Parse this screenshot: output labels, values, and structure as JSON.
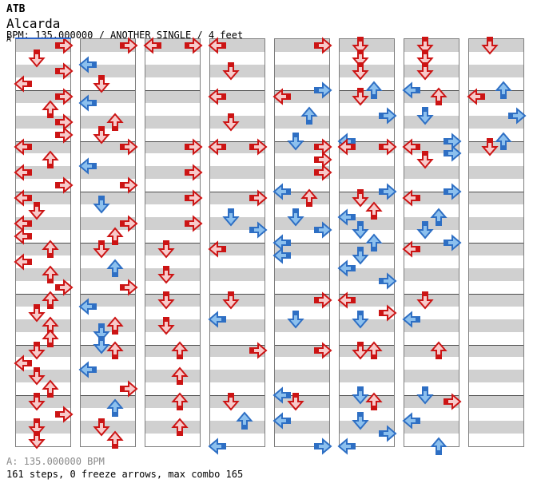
{
  "header": {
    "app_name": "ATB",
    "title": "Alcarda",
    "subtitle": "BPM: 135.000000 / ANOTHER SINGLE / 4 feet"
  },
  "footer": {
    "bpm_line": "A: 135.000000 BPM",
    "stats_line": "161 steps, 0 freeze arrows, max combo 165"
  },
  "chart": {
    "marker_label": "A",
    "bpm": "135.000000",
    "difficulty": "ANOTHER SINGLE",
    "feet": "4 feet",
    "steps": 161,
    "freeze_arrows": 0,
    "max_combo": 165,
    "columns": 8,
    "measures_per_column": 8,
    "beats_per_measure": 4,
    "note_format": "[measure 0-7, beat 0-3.5 (x.5 = eighth note), lane L/D/U/R, color r=quarter b=eighth]",
    "colors": {
      "red_border": "#cc1414",
      "red_fill": "#f7caca",
      "blue_border": "#2e6fc4",
      "blue_fill": "#8cc0ee",
      "band_gray": "#d0d0d0",
      "band_white": "#ffffff",
      "separator": "#4d4d4d",
      "column_border": "#7d7d7d",
      "start_marker": "#2d64c8"
    },
    "notes": [
      [
        [
          0,
          0,
          "R",
          "r"
        ],
        [
          0,
          1,
          "D",
          "r"
        ],
        [
          0,
          2,
          "R",
          "r"
        ],
        [
          0,
          3,
          "L",
          "r"
        ],
        [
          1,
          0,
          "R",
          "r"
        ],
        [
          1,
          1,
          "U",
          "r"
        ],
        [
          1,
          2,
          "R",
          "r"
        ],
        [
          1,
          3,
          "R",
          "r"
        ],
        [
          2,
          0,
          "L",
          "r"
        ],
        [
          2,
          1,
          "U",
          "r"
        ],
        [
          2,
          2,
          "L",
          "r"
        ],
        [
          2,
          3,
          "R",
          "r"
        ],
        [
          3,
          0,
          "L",
          "r"
        ],
        [
          3,
          1,
          "D",
          "r"
        ],
        [
          3,
          2,
          "L",
          "r"
        ],
        [
          3,
          3,
          "L",
          "r"
        ],
        [
          4,
          0,
          "U",
          "r"
        ],
        [
          4,
          1,
          "L",
          "r"
        ],
        [
          4,
          2,
          "U",
          "r"
        ],
        [
          4,
          3,
          "R",
          "r"
        ],
        [
          5,
          0,
          "U",
          "r"
        ],
        [
          5,
          1,
          "D",
          "r"
        ],
        [
          5,
          2,
          "U",
          "r"
        ],
        [
          5,
          3,
          "U",
          "r"
        ],
        [
          6,
          0,
          "D",
          "r"
        ],
        [
          6,
          1,
          "L",
          "r"
        ],
        [
          6,
          2,
          "D",
          "r"
        ],
        [
          6,
          3,
          "U",
          "r"
        ],
        [
          7,
          0,
          "D",
          "r"
        ],
        [
          7,
          1,
          "R",
          "r"
        ],
        [
          7,
          2,
          "D",
          "r"
        ],
        [
          7,
          3,
          "D",
          "r"
        ]
      ],
      [
        [
          0,
          0,
          "R",
          "r"
        ],
        [
          0,
          1.5,
          "L",
          "b"
        ],
        [
          0,
          3,
          "D",
          "r"
        ],
        [
          1,
          0.5,
          "L",
          "b"
        ],
        [
          1,
          2,
          "U",
          "r"
        ],
        [
          1,
          3,
          "D",
          "r"
        ],
        [
          2,
          0,
          "R",
          "r"
        ],
        [
          2,
          1.5,
          "L",
          "b"
        ],
        [
          2,
          3,
          "R",
          "r"
        ],
        [
          3,
          0.5,
          "D",
          "b"
        ],
        [
          3,
          2,
          "R",
          "r"
        ],
        [
          3,
          3,
          "U",
          "r"
        ],
        [
          4,
          0,
          "D",
          "r"
        ],
        [
          4,
          1.5,
          "U",
          "b"
        ],
        [
          4,
          3,
          "R",
          "r"
        ],
        [
          5,
          0.5,
          "L",
          "b"
        ],
        [
          5,
          2,
          "U",
          "r"
        ],
        [
          5,
          2.5,
          "D",
          "b"
        ],
        [
          5,
          3.5,
          "D",
          "b"
        ],
        [
          6,
          0,
          "U",
          "r"
        ],
        [
          6,
          1.5,
          "L",
          "b"
        ],
        [
          6,
          3,
          "R",
          "r"
        ],
        [
          7,
          0.5,
          "U",
          "b"
        ],
        [
          7,
          2,
          "D",
          "r"
        ],
        [
          7,
          3,
          "U",
          "r"
        ]
      ],
      [
        [
          0,
          0,
          "L",
          "r"
        ],
        [
          0,
          0,
          "R",
          "r"
        ],
        [
          2,
          0,
          "R",
          "r"
        ],
        [
          2,
          2,
          "R",
          "r"
        ],
        [
          3,
          0,
          "R",
          "r"
        ],
        [
          3,
          2,
          "R",
          "r"
        ],
        [
          4,
          0,
          "D",
          "r"
        ],
        [
          4,
          2,
          "D",
          "r"
        ],
        [
          5,
          0,
          "D",
          "r"
        ],
        [
          5,
          2,
          "D",
          "r"
        ],
        [
          6,
          0,
          "U",
          "r"
        ],
        [
          6,
          2,
          "U",
          "r"
        ],
        [
          7,
          0,
          "U",
          "r"
        ],
        [
          7,
          2,
          "U",
          "r"
        ]
      ],
      [
        [
          0,
          0,
          "L",
          "r"
        ],
        [
          0,
          2,
          "D",
          "r"
        ],
        [
          1,
          0,
          "L",
          "r"
        ],
        [
          1,
          2,
          "D",
          "r"
        ],
        [
          2,
          0,
          "L",
          "r"
        ],
        [
          2,
          0,
          "R",
          "r"
        ],
        [
          3,
          0,
          "R",
          "r"
        ],
        [
          3,
          1.5,
          "D",
          "b"
        ],
        [
          3,
          2.5,
          "R",
          "b"
        ],
        [
          4,
          0,
          "L",
          "r"
        ],
        [
          5,
          0,
          "D",
          "r"
        ],
        [
          5,
          1.5,
          "L",
          "b"
        ],
        [
          6,
          0,
          "R",
          "r"
        ],
        [
          7,
          0,
          "D",
          "r"
        ],
        [
          7,
          1.5,
          "U",
          "b"
        ],
        [
          7,
          3.5,
          "L",
          "b"
        ]
      ],
      [
        [
          0,
          0,
          "R",
          "r"
        ],
        [
          0,
          3.5,
          "R",
          "b"
        ],
        [
          1,
          0,
          "L",
          "r"
        ],
        [
          1,
          1.5,
          "U",
          "b"
        ],
        [
          1,
          3.5,
          "D",
          "b"
        ],
        [
          2,
          0,
          "R",
          "r"
        ],
        [
          2,
          1,
          "R",
          "r"
        ],
        [
          2,
          2,
          "R",
          "r"
        ],
        [
          2,
          3.5,
          "L",
          "b"
        ],
        [
          3,
          0,
          "U",
          "r"
        ],
        [
          3,
          1.5,
          "D",
          "b"
        ],
        [
          3,
          2.5,
          "R",
          "b"
        ],
        [
          3,
          3.5,
          "L",
          "b"
        ],
        [
          4,
          0.5,
          "L",
          "b"
        ],
        [
          5,
          0,
          "R",
          "r"
        ],
        [
          5,
          1.5,
          "D",
          "b"
        ],
        [
          6,
          0,
          "R",
          "r"
        ],
        [
          6,
          3.5,
          "L",
          "b"
        ],
        [
          7,
          0,
          "D",
          "r"
        ],
        [
          7,
          1.5,
          "L",
          "b"
        ],
        [
          7,
          3.5,
          "R",
          "b"
        ]
      ],
      [
        [
          0,
          0,
          "D",
          "r"
        ],
        [
          0,
          1,
          "D",
          "r"
        ],
        [
          0,
          2,
          "D",
          "r"
        ],
        [
          0,
          3.5,
          "U",
          "b"
        ],
        [
          1,
          0,
          "D",
          "r"
        ],
        [
          1,
          1.5,
          "R",
          "b"
        ],
        [
          1,
          3.5,
          "L",
          "b"
        ],
        [
          2,
          0,
          "L",
          "r"
        ],
        [
          2,
          0,
          "R",
          "r"
        ],
        [
          2,
          3.5,
          "R",
          "b"
        ],
        [
          3,
          0,
          "D",
          "r"
        ],
        [
          3,
          1,
          "U",
          "r"
        ],
        [
          3,
          1.5,
          "L",
          "b"
        ],
        [
          3,
          2.5,
          "D",
          "b"
        ],
        [
          3,
          3.5,
          "U",
          "b"
        ],
        [
          4,
          0.5,
          "D",
          "b"
        ],
        [
          4,
          1.5,
          "L",
          "b"
        ],
        [
          4,
          2.5,
          "R",
          "b"
        ],
        [
          5,
          0,
          "L",
          "r"
        ],
        [
          5,
          1,
          "R",
          "r"
        ],
        [
          5,
          1.5,
          "D",
          "b"
        ],
        [
          6,
          0,
          "D",
          "r"
        ],
        [
          6,
          0,
          "U",
          "r"
        ],
        [
          6,
          3.5,
          "D",
          "b"
        ],
        [
          7,
          0,
          "U",
          "r"
        ],
        [
          7,
          1.5,
          "D",
          "b"
        ],
        [
          7,
          2.5,
          "R",
          "b"
        ],
        [
          7,
          3.5,
          "L",
          "b"
        ]
      ],
      [
        [
          0,
          0,
          "D",
          "r"
        ],
        [
          0,
          1,
          "D",
          "r"
        ],
        [
          0,
          2,
          "D",
          "r"
        ],
        [
          0,
          3.5,
          "L",
          "b"
        ],
        [
          1,
          0,
          "U",
          "r"
        ],
        [
          1,
          1.5,
          "D",
          "b"
        ],
        [
          1,
          3.5,
          "R",
          "b"
        ],
        [
          2,
          0,
          "L",
          "r"
        ],
        [
          2,
          0.5,
          "R",
          "b"
        ],
        [
          2,
          1,
          "D",
          "r"
        ],
        [
          2,
          3.5,
          "R",
          "b"
        ],
        [
          3,
          0,
          "L",
          "r"
        ],
        [
          3,
          1.5,
          "U",
          "b"
        ],
        [
          3,
          2.5,
          "D",
          "b"
        ],
        [
          3,
          3.5,
          "R",
          "b"
        ],
        [
          4,
          0,
          "L",
          "r"
        ],
        [
          5,
          0,
          "D",
          "r"
        ],
        [
          5,
          1.5,
          "L",
          "b"
        ],
        [
          6,
          0,
          "U",
          "r"
        ],
        [
          6,
          3.5,
          "D",
          "b"
        ],
        [
          7,
          0,
          "R",
          "r"
        ],
        [
          7,
          1.5,
          "L",
          "b"
        ],
        [
          7,
          3.5,
          "U",
          "b"
        ]
      ],
      [
        [
          0,
          0,
          "D",
          "r"
        ],
        [
          0,
          3.5,
          "U",
          "b"
        ],
        [
          1,
          0,
          "L",
          "r"
        ],
        [
          1,
          1.5,
          "R",
          "b"
        ],
        [
          1,
          3.5,
          "U",
          "b"
        ],
        [
          2,
          0,
          "D",
          "r"
        ]
      ]
    ]
  }
}
